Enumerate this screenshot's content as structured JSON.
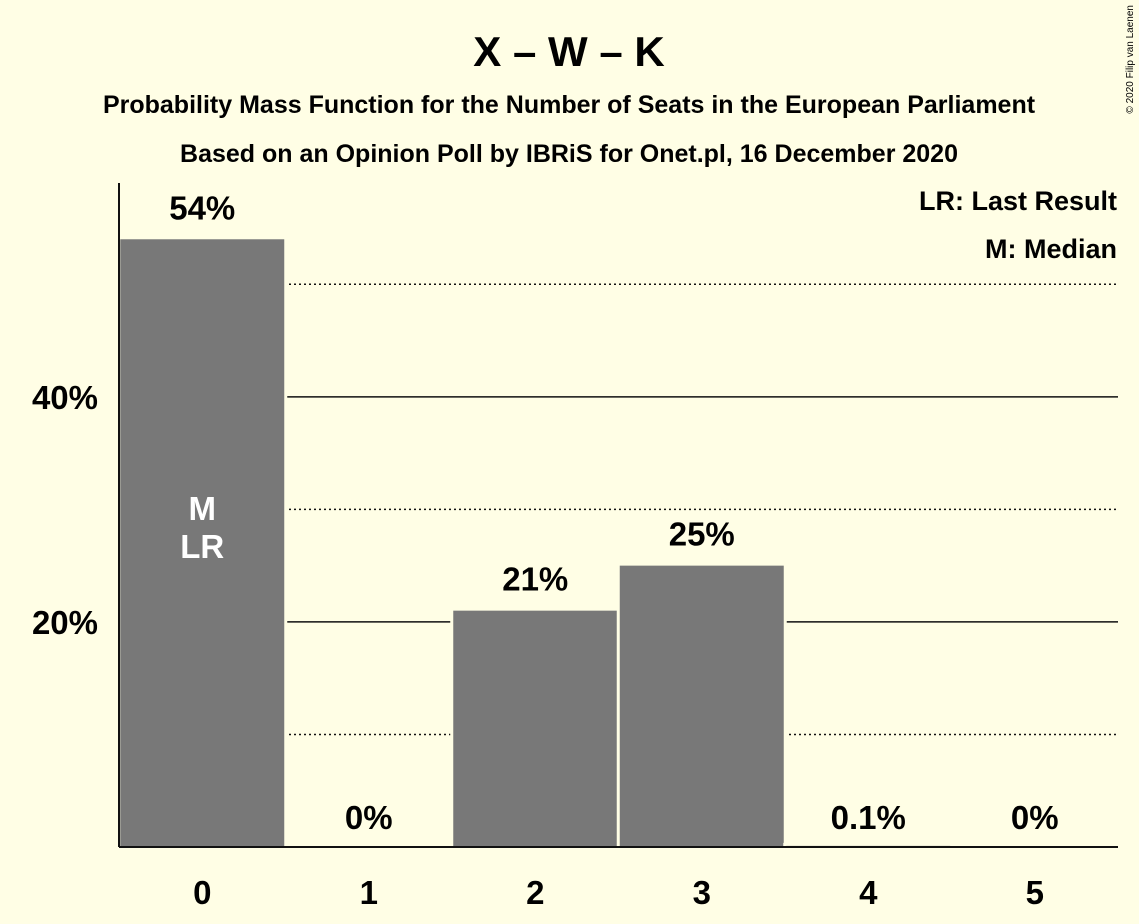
{
  "chart_data": {
    "type": "bar",
    "title": "X – W – K",
    "subtitle_lines": [
      "Probability Mass Function for the Number of Seats in the European Parliament",
      "Based on an Opinion Poll by IBRiS for Onet.pl, 16 December 2020"
    ],
    "categories": [
      "0",
      "1",
      "2",
      "3",
      "4",
      "5"
    ],
    "values": [
      54,
      0,
      21,
      25,
      0.1,
      0
    ],
    "value_labels": [
      "54%",
      "0%",
      "21%",
      "25%",
      "0.1%",
      "0%"
    ],
    "bar_annotations": [
      [
        "M",
        "LR"
      ],
      [],
      [],
      [],
      [],
      []
    ],
    "ylim": [
      0,
      59
    ],
    "yticks": [
      20,
      40
    ],
    "ytick_labels": [
      "20%",
      "40%"
    ],
    "major_gridlines": [
      20,
      40
    ],
    "minor_gridlines": [
      10,
      30,
      50
    ],
    "legend": [
      "LR: Last Result",
      "M: Median"
    ],
    "legend_position": "top-right",
    "copyright": "© 2020 Filip van Laenen",
    "colors": {
      "bar": "#787878",
      "background": "#FFFEE5",
      "text": "#111111",
      "inbar_text": "#FFFFFF"
    }
  }
}
